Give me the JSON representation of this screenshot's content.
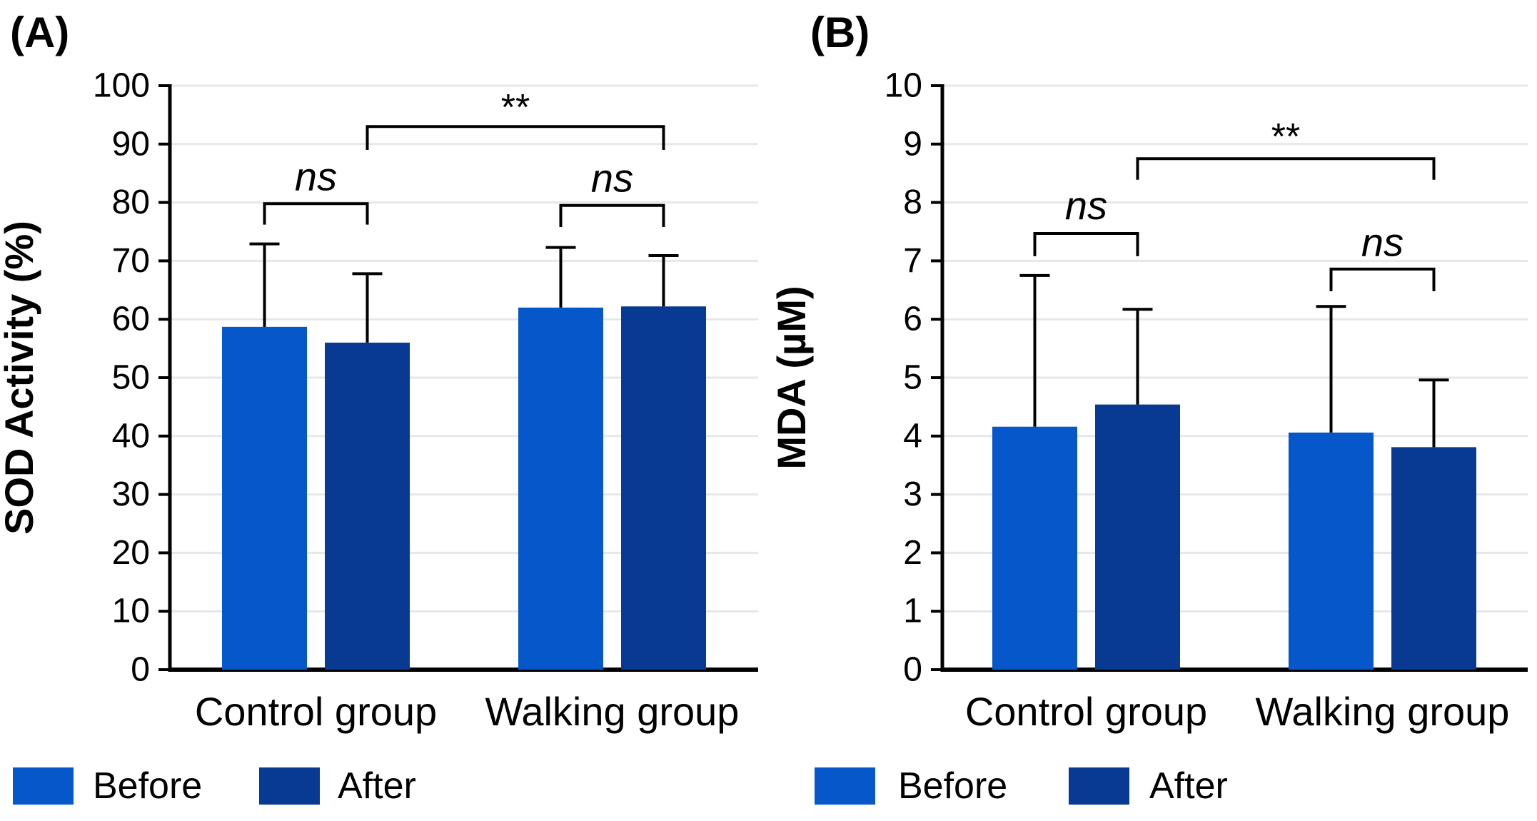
{
  "colors": {
    "before": "#0657C9",
    "after": "#083A94",
    "grid": "#E7E7E7",
    "axis": "#000000",
    "text": "#000000",
    "panel_label": "#2F1D15",
    "background": "#FFFFFF"
  },
  "legend": {
    "before_label": "Before",
    "after_label": "After"
  },
  "chart_data": [
    {
      "type": "bar",
      "panel_label": "(A)",
      "ylabel": "SOD Activity (%)",
      "ylim": [
        0,
        100
      ],
      "ytick_step": 10,
      "grid": true,
      "legend_position": "bottom-left",
      "categories": [
        "Control group",
        "Walking group"
      ],
      "series": [
        {
          "name": "Before",
          "values": [
            58.7,
            62.0
          ],
          "error_top": [
            72.9,
            72.3
          ]
        },
        {
          "name": "After",
          "values": [
            56.0,
            62.2
          ],
          "error_top": [
            67.8,
            70.9
          ]
        }
      ],
      "significance": [
        {
          "label": "ns",
          "style": "italic",
          "from": {
            "group": 0,
            "series": 0
          },
          "to": {
            "group": 0,
            "series": 1
          },
          "bar_y": 79.8,
          "tick": 3.6,
          "label_y": 84.5
        },
        {
          "label": "ns",
          "style": "italic",
          "from": {
            "group": 1,
            "series": 0
          },
          "to": {
            "group": 1,
            "series": 1
          },
          "bar_y": 79.5,
          "tick": 3.7,
          "label_y": 84.2
        },
        {
          "label": "**",
          "style": "normal",
          "from": {
            "group": 0,
            "series": 1
          },
          "to": {
            "group": 1,
            "series": 1
          },
          "bar_y": 93.0,
          "tick": 4.0,
          "label_y": 96.2
        }
      ]
    },
    {
      "type": "bar",
      "panel_label": "(B)",
      "ylabel": "MDA (µM)",
      "ylim": [
        0,
        10
      ],
      "ytick_step": 1,
      "grid": true,
      "legend_position": "bottom-left",
      "categories": [
        "Control group",
        "Walking group"
      ],
      "series": [
        {
          "name": "Before",
          "values": [
            4.16,
            4.06
          ],
          "error_top": [
            6.75,
            6.22
          ]
        },
        {
          "name": "After",
          "values": [
            4.54,
            3.81
          ],
          "error_top": [
            6.17,
            4.96
          ]
        }
      ],
      "significance": [
        {
          "label": "ns",
          "style": "italic",
          "from": {
            "group": 0,
            "series": 0
          },
          "to": {
            "group": 0,
            "series": 1
          },
          "bar_y": 7.47,
          "tick": 0.39,
          "label_y": 7.95
        },
        {
          "label": "ns",
          "style": "italic",
          "from": {
            "group": 1,
            "series": 0
          },
          "to": {
            "group": 1,
            "series": 1
          },
          "bar_y": 6.86,
          "tick": 0.38,
          "label_y": 7.32
        },
        {
          "label": "**",
          "style": "normal",
          "from": {
            "group": 0,
            "series": 1
          },
          "to": {
            "group": 1,
            "series": 1
          },
          "bar_y": 8.75,
          "tick": 0.36,
          "label_y": 9.12
        }
      ]
    }
  ]
}
